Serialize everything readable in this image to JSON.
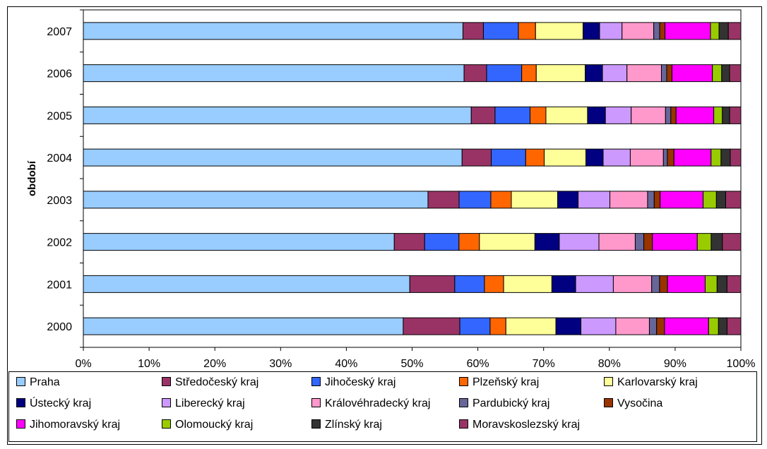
{
  "chart_data": {
    "type": "bar",
    "orientation": "horizontal",
    "stacked": "percent",
    "ylabel": "období",
    "categories": [
      "2007",
      "2006",
      "2005",
      "2004",
      "2003",
      "2002",
      "2001",
      "2000"
    ],
    "xticks": [
      "0%",
      "10%",
      "20%",
      "30%",
      "40%",
      "50%",
      "60%",
      "70%",
      "80%",
      "90%",
      "100%"
    ],
    "xlim": [
      0,
      100
    ],
    "legend_position": "bottom",
    "series": [
      {
        "name": "Praha",
        "color": "#99ccff",
        "values": [
          57.5,
          57.5,
          58.7,
          57.2,
          52.1,
          47.1,
          49.4,
          48.6
        ]
      },
      {
        "name": "Středočeský kraj",
        "color": "#993366",
        "values": [
          3.1,
          3.4,
          3.6,
          4.4,
          4.7,
          4.6,
          6.8,
          8.6
        ]
      },
      {
        "name": "Jihočeský kraj",
        "color": "#3366ff",
        "values": [
          5.3,
          5.3,
          5.3,
          5.2,
          4.8,
          5.2,
          4.5,
          4.6
        ]
      },
      {
        "name": "Plzeňský kraj",
        "color": "#ff6600",
        "values": [
          2.6,
          2.2,
          2.4,
          2.8,
          3.1,
          3.1,
          2.9,
          2.4
        ]
      },
      {
        "name": "Karlovarský kraj",
        "color": "#ffff99",
        "values": [
          7.2,
          7.4,
          6.3,
          6.3,
          7.0,
          8.4,
          7.3,
          7.6
        ]
      },
      {
        "name": "Ústecký kraj",
        "color": "#000080",
        "values": [
          2.5,
          2.6,
          2.7,
          2.6,
          3.1,
          3.7,
          3.6,
          3.8
        ]
      },
      {
        "name": "Liberecký kraj",
        "color": "#cc99ff",
        "values": [
          3.4,
          3.7,
          3.9,
          4.1,
          4.8,
          6.0,
          5.7,
          5.3
        ]
      },
      {
        "name": "Královéhradecký kraj",
        "color": "#ff99cc",
        "values": [
          4.8,
          5.2,
          5.2,
          5.0,
          5.7,
          5.5,
          5.8,
          5.1
        ]
      },
      {
        "name": "Pardubický kraj",
        "color": "#666699",
        "values": [
          0.9,
          0.8,
          0.8,
          0.6,
          1.0,
          1.3,
          1.2,
          1.1
        ]
      },
      {
        "name": "Vysočina",
        "color": "#993300",
        "values": [
          0.8,
          0.8,
          0.8,
          1.0,
          0.9,
          1.3,
          1.2,
          1.2
        ]
      },
      {
        "name": "Jihomoravský kraj",
        "color": "#ff00ff",
        "values": [
          6.9,
          6.1,
          5.7,
          5.6,
          6.5,
          6.8,
          5.7,
          6.7
        ]
      },
      {
        "name": "Olomoucký kraj",
        "color": "#99cc00",
        "values": [
          1.3,
          1.4,
          1.3,
          1.5,
          2.0,
          2.1,
          1.8,
          1.5
        ]
      },
      {
        "name": "Zlínský kraj",
        "color": "#333333",
        "values": [
          1.4,
          1.2,
          1.1,
          1.4,
          1.4,
          1.7,
          1.5,
          1.3
        ]
      },
      {
        "name": "Moravskoslezský kraj",
        "color": "#993366",
        "values": [
          1.9,
          1.7,
          1.7,
          1.6,
          2.3,
          2.8,
          2.1,
          2.1
        ]
      }
    ]
  }
}
